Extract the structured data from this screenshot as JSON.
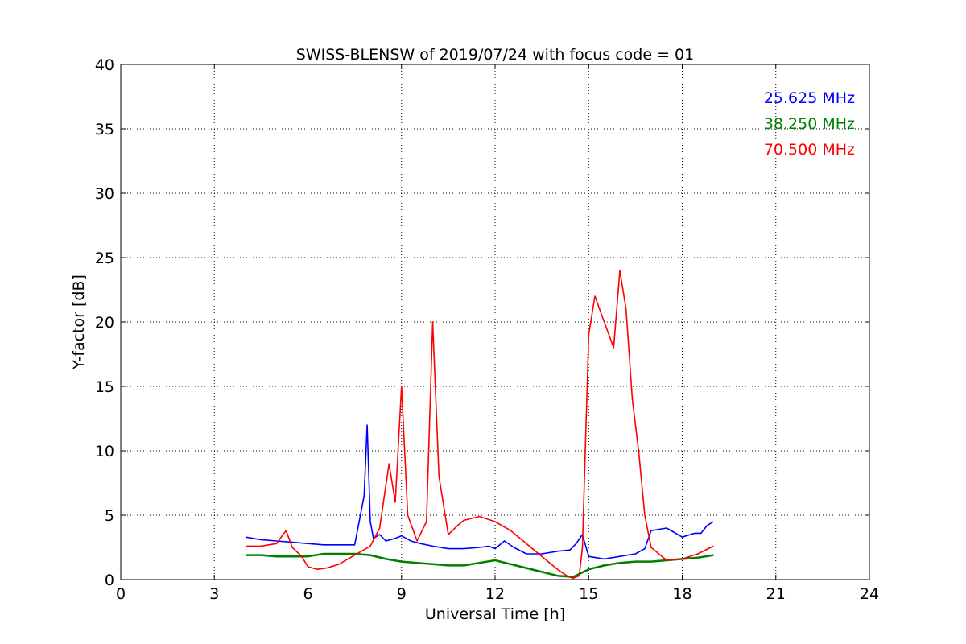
{
  "chart_data": {
    "type": "line",
    "title": "SWISS-BLENSW of 2019/07/24 with focus code = 01",
    "xlabel": "Universal Time [h]",
    "ylabel": "Y-factor [dB]",
    "xlim": [
      0,
      24
    ],
    "ylim": [
      0,
      40
    ],
    "xticks": [
      0,
      3,
      6,
      9,
      12,
      15,
      18,
      21,
      24
    ],
    "yticks": [
      0,
      5,
      10,
      15,
      20,
      25,
      30,
      35,
      40
    ],
    "grid": true,
    "legend_position": "top-right",
    "series": [
      {
        "name": "25.625 MHz",
        "color": "#0000ff",
        "x": [
          4.0,
          4.5,
          5.0,
          5.5,
          6.0,
          6.5,
          7.0,
          7.5,
          7.8,
          7.9,
          8.0,
          8.1,
          8.3,
          8.5,
          8.8,
          9.0,
          9.3,
          9.6,
          10.0,
          10.5,
          11.0,
          11.5,
          11.8,
          12.0,
          12.3,
          12.6,
          13.0,
          13.5,
          14.0,
          14.4,
          14.6,
          14.8,
          15.0,
          15.5,
          16.0,
          16.5,
          16.8,
          17.0,
          17.5,
          18.0,
          18.4,
          18.6,
          18.8,
          19.0
        ],
        "y": [
          3.3,
          3.1,
          3.0,
          2.9,
          2.8,
          2.7,
          2.7,
          2.7,
          6.5,
          12.0,
          4.5,
          3.2,
          3.5,
          3.0,
          3.2,
          3.4,
          3.0,
          2.8,
          2.6,
          2.4,
          2.4,
          2.5,
          2.6,
          2.4,
          3.0,
          2.5,
          2.0,
          2.0,
          2.2,
          2.3,
          2.8,
          3.5,
          1.8,
          1.6,
          1.8,
          2.0,
          2.4,
          3.8,
          4.0,
          3.3,
          3.6,
          3.6,
          4.2,
          4.5
        ]
      },
      {
        "name": "38.250 MHz",
        "color": "#008000",
        "x": [
          4.0,
          4.5,
          5.0,
          5.5,
          6.0,
          6.5,
          7.0,
          7.5,
          8.0,
          8.5,
          9.0,
          9.5,
          10.0,
          10.5,
          11.0,
          11.5,
          12.0,
          12.5,
          13.0,
          13.5,
          14.0,
          14.5,
          15.0,
          15.5,
          16.0,
          16.5,
          17.0,
          17.5,
          18.0,
          18.5,
          19.0
        ],
        "y": [
          1.9,
          1.9,
          1.8,
          1.8,
          1.8,
          2.0,
          2.0,
          2.0,
          1.9,
          1.6,
          1.4,
          1.3,
          1.2,
          1.1,
          1.1,
          1.3,
          1.5,
          1.2,
          0.9,
          0.6,
          0.3,
          0.2,
          0.8,
          1.1,
          1.3,
          1.4,
          1.4,
          1.5,
          1.6,
          1.7,
          1.9
        ]
      },
      {
        "name": "70.500 MHz",
        "color": "#ff0000",
        "x": [
          4.0,
          4.5,
          5.0,
          5.2,
          5.3,
          5.5,
          5.8,
          6.0,
          6.3,
          6.6,
          7.0,
          7.5,
          8.0,
          8.3,
          8.6,
          8.8,
          9.0,
          9.2,
          9.5,
          9.8,
          10.0,
          10.2,
          10.5,
          10.8,
          11.0,
          11.5,
          12.0,
          12.5,
          13.0,
          13.5,
          14.0,
          14.3,
          14.5,
          14.7,
          14.8,
          15.0,
          15.2,
          15.5,
          15.8,
          16.0,
          16.2,
          16.4,
          16.6,
          16.8,
          17.0,
          17.5,
          18.0,
          18.5,
          19.0
        ],
        "y": [
          2.6,
          2.6,
          2.8,
          3.5,
          3.8,
          2.5,
          1.8,
          1.0,
          0.8,
          0.9,
          1.2,
          1.9,
          2.6,
          4.0,
          9.0,
          6.0,
          15.0,
          5.0,
          3.0,
          4.5,
          20.0,
          8.0,
          3.5,
          4.2,
          4.6,
          4.9,
          4.5,
          3.8,
          2.8,
          1.8,
          0.8,
          0.3,
          0.1,
          0.3,
          2.5,
          19.0,
          22.0,
          20.0,
          18.0,
          24.0,
          21.0,
          14.0,
          10.0,
          5.0,
          2.5,
          1.5,
          1.6,
          2.0,
          2.6
        ]
      }
    ]
  }
}
